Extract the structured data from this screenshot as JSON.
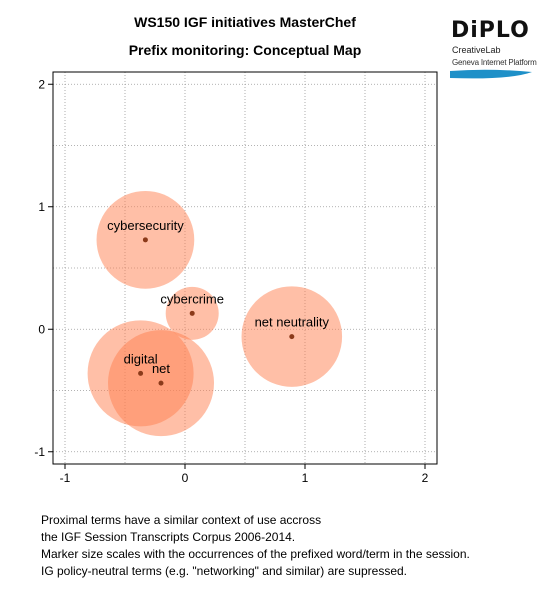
{
  "header": {
    "title": "WS150 IGF initiatives MasterChef",
    "subtitle": "Prefix monitoring: Conceptual Map"
  },
  "logo": {
    "word": "DiPLO",
    "line1": "CreativeLab",
    "line2": "Geneva Internet Platform",
    "swoosh_color": "#1e90c8"
  },
  "chart_data": {
    "type": "scatter",
    "title": "Prefix monitoring: Conceptual Map",
    "xlabel": "",
    "ylabel": "",
    "xlim": [
      -1.1,
      2.1
    ],
    "ylim": [
      -1.1,
      2.1
    ],
    "x_ticks": [
      -1,
      0,
      1,
      2
    ],
    "y_ticks": [
      -1,
      0,
      1,
      2
    ],
    "grid": true,
    "marker_color": "#ff7f50",
    "marker_alpha": 0.5,
    "point_color": "#8b3a1a",
    "points": [
      {
        "label": "cybersecurity",
        "x": -0.33,
        "y": 0.73,
        "size": 3.4
      },
      {
        "label": "cybercrime",
        "x": 0.06,
        "y": 0.13,
        "size": 1.0
      },
      {
        "label": "net neutrality",
        "x": 0.89,
        "y": -0.06,
        "size": 3.6
      },
      {
        "label": "digital",
        "x": -0.37,
        "y": -0.36,
        "size": 4.0
      },
      {
        "label": "net",
        "x": -0.2,
        "y": -0.44,
        "size": 4.0
      }
    ]
  },
  "notes": [
    "Proximal terms have a similar context of use accross",
    "the IGF Session Transcripts Corpus 2006-2014.",
    "Marker size scales with the occurrences of the prefixed word/term in the session.",
    "IG policy-neutral terms (e.g. \"networking\" and similar) are supressed."
  ]
}
